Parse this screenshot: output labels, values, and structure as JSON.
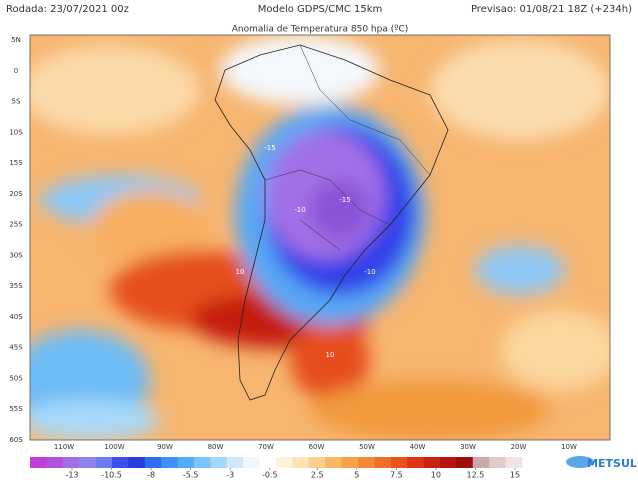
{
  "header": {
    "run": "Rodada: 23/07/2021 00z",
    "model": "Modelo GDPS/CMC 15km",
    "forecast": "Previsao: 01/08/21 18Z (+234h)"
  },
  "map": {
    "title": "Anomalia de Temperatura 850 hpa (ºC)",
    "lat_labels": [
      "5N",
      "0",
      "5S",
      "10S",
      "15S",
      "20S",
      "25S",
      "30S",
      "35S",
      "40S",
      "45S",
      "50S",
      "55S",
      "60S"
    ],
    "lon_labels": [
      "110W",
      "100W",
      "90W",
      "80W",
      "70W",
      "60W",
      "50W",
      "40W",
      "30W",
      "20W",
      "10W"
    ],
    "contour_labels": [
      "-15",
      "-15",
      "-10",
      "10",
      "10",
      "-10"
    ]
  },
  "colorbar": {
    "ticks": [
      -13,
      -10.5,
      -8,
      -5.5,
      -3,
      -0.5,
      2.5,
      5,
      7.5,
      10,
      12.5,
      15
    ],
    "colors": [
      "#c33cd8",
      "#b052de",
      "#a070e6",
      "#8f84ee",
      "#6b7cf0",
      "#3b4ff0",
      "#2a3cdc",
      "#2f6cf2",
      "#3e8ff6",
      "#56abf7",
      "#7bc4f8",
      "#a4d8fa",
      "#cde9fb",
      "#eef6fc",
      "#ffffff",
      "#fdf3d8",
      "#fde4b2",
      "#fbd08a",
      "#f8b966",
      "#f5a24a",
      "#f28a36",
      "#ee6f28",
      "#e9531d",
      "#dc3616",
      "#cb2111",
      "#b5150e",
      "#9d0f0c",
      "#c8a8a8",
      "#e0cccc",
      "#efe4e4"
    ]
  },
  "logo": "METSUL"
}
